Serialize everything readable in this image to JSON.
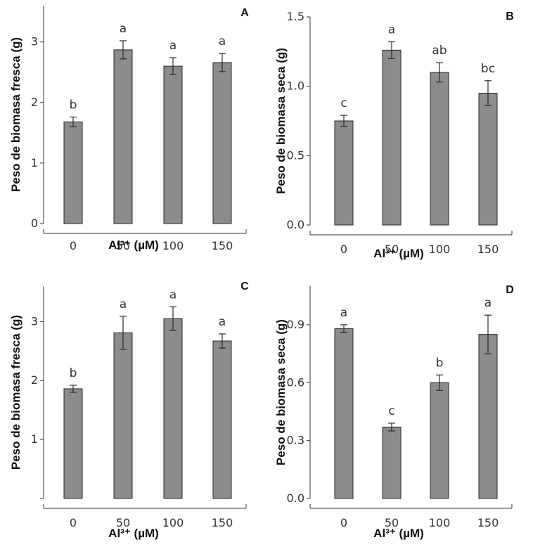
{
  "colors": {
    "bar_fill": "#8c8c8f",
    "bar_stroke": "#2a2a2a",
    "axis": "#333333",
    "text": "#111111"
  },
  "chart_data": [
    {
      "type": "bar",
      "panel": "A",
      "categories": [
        "0",
        "50",
        "100",
        "150"
      ],
      "values": [
        1.68,
        2.87,
        2.6,
        2.66
      ],
      "errors": [
        0.08,
        0.15,
        0.14,
        0.15
      ],
      "significance": [
        "b",
        "a",
        "a",
        "a"
      ],
      "xlabel": "Al³⁺ (µM)",
      "ylabel": "Peso de biomasa fresca (g)",
      "ylim": [
        0,
        3.6
      ],
      "yticks": [
        0,
        1,
        2,
        3
      ],
      "ytick_labels": [
        "0",
        "1",
        "2",
        "3"
      ],
      "grid": false
    },
    {
      "type": "bar",
      "panel": "B",
      "categories": [
        "0",
        "50",
        "100",
        "150"
      ],
      "values": [
        0.75,
        1.26,
        1.1,
        0.95
      ],
      "errors": [
        0.04,
        0.06,
        0.07,
        0.09
      ],
      "significance": [
        "c",
        "a",
        "ab",
        "bc"
      ],
      "xlabel": "Al³⁺ (µM)",
      "ylabel": "Peso de biomasa seca (g)",
      "ylim": [
        0,
        1.5
      ],
      "yticks": [
        0,
        0.5,
        1.0,
        1.5
      ],
      "ytick_labels": [
        "0.0",
        "0.5",
        "1.0",
        "1.5"
      ],
      "grid": false
    },
    {
      "type": "bar",
      "panel": "C",
      "categories": [
        "0",
        "50",
        "100",
        "150"
      ],
      "values": [
        1.86,
        2.81,
        3.05,
        2.67
      ],
      "errors": [
        0.06,
        0.28,
        0.2,
        0.12
      ],
      "significance": [
        "b",
        "a",
        "a",
        "a"
      ],
      "xlabel": "Al³⁺ (µM)",
      "ylabel": "Peso de biomasa fresca (g)",
      "ylim": [
        0,
        3.6
      ],
      "yticks": [
        1,
        2,
        3
      ],
      "ytick_labels": [
        "1",
        "2",
        "3"
      ],
      "grid": false
    },
    {
      "type": "bar",
      "panel": "D",
      "categories": [
        "0",
        "50",
        "100",
        "150"
      ],
      "values": [
        0.88,
        0.37,
        0.6,
        0.85
      ],
      "errors": [
        0.02,
        0.02,
        0.04,
        0.1
      ],
      "significance": [
        "a",
        "c",
        "b",
        "a"
      ],
      "xlabel": "Al³⁺ (µM)",
      "ylabel": "Peso de biomasa seca (g)",
      "ylim": [
        0,
        1.1
      ],
      "yticks": [
        0,
        0.3,
        0.6,
        0.9
      ],
      "ytick_labels": [
        "0.0",
        "0.3",
        "0.6",
        "0.9"
      ],
      "grid": false
    }
  ]
}
